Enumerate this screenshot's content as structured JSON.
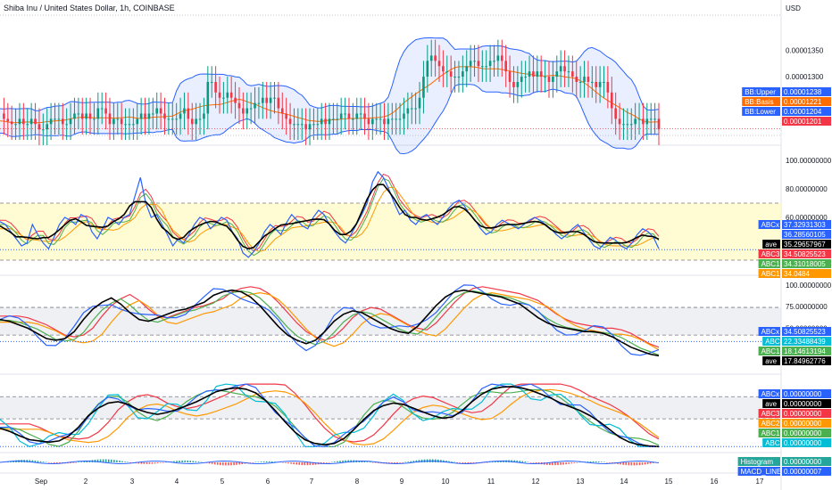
{
  "header": {
    "title": "Shiba Inu / United States Dollar, 1h, COINBASE",
    "currency": "USD"
  },
  "chart_data": {
    "type": "line",
    "x_axis": {
      "ticks": [
        "Sep",
        "2",
        "3",
        "4",
        "5",
        "6",
        "7",
        "8",
        "9",
        "10",
        "11",
        "12",
        "13",
        "14",
        "15",
        "16",
        "17"
      ]
    },
    "panes": [
      {
        "name": "price",
        "ylim": [
          1.175e-05,
          1.415e-05
        ],
        "y_ticks": [
          "0.00001350",
          "0.00001300"
        ],
        "labels": [
          {
            "text": "BB:Upper",
            "value": "0.00001238",
            "color": "#2962ff"
          },
          {
            "text": "BB:Basis",
            "value": "0.00001221",
            "color": "#ff6d00"
          },
          {
            "text": "BB:Lower",
            "value": "0.00001204",
            "color": "#2962ff"
          },
          {
            "text": "",
            "value": "0.00001201",
            "color": "#f23645"
          }
        ],
        "close_trace": [
          1.23e-05,
          1.22e-05,
          1.215e-05,
          1.21e-05,
          1.21e-05,
          1.22e-05,
          1.21e-05,
          1.21e-05,
          1.22e-05,
          1.21e-05,
          1.2e-05,
          1.2e-05,
          1.21e-05,
          1.22e-05,
          1.22e-05,
          1.22e-05,
          1.21e-05,
          1.21e-05,
          1.22e-05,
          1.23e-05,
          1.23e-05,
          1.22e-05,
          1.23e-05,
          1.22e-05,
          1.22e-05,
          1.24e-05,
          1.24e-05,
          1.23e-05,
          1.21e-05,
          1.22e-05,
          1.22e-05,
          1.21e-05,
          1.21e-05,
          1.21e-05,
          1.21e-05,
          1.22e-05,
          1.23e-05,
          1.22e-05,
          1.23e-05,
          1.23e-05,
          1.24e-05,
          1.23e-05,
          1.22e-05,
          1.22e-05,
          1.22e-05,
          1.22e-05,
          1.23e-05,
          1.24e-05,
          1.22e-05,
          1.21e-05,
          1.22e-05,
          1.22e-05,
          1.23e-05,
          1.29e-05,
          1.29e-05,
          1.27e-05,
          1.26e-05,
          1.26e-05,
          1.27e-05,
          1.26e-05,
          1.25e-05,
          1.24e-05,
          1.23e-05,
          1.24e-05,
          1.24e-05,
          1.25e-05,
          1.25e-05,
          1.26e-05,
          1.25e-05,
          1.26e-05,
          1.26e-05,
          1.24e-05,
          1.23e-05,
          1.22e-05,
          1.21e-05,
          1.21e-05,
          1.21e-05,
          1.21e-05,
          1.2e-05,
          1.21e-05,
          1.21e-05,
          1.21e-05,
          1.22e-05,
          1.21e-05,
          1.22e-05,
          1.22e-05,
          1.22e-05,
          1.23e-05,
          1.23e-05,
          1.22e-05,
          1.22e-05,
          1.23e-05,
          1.23e-05,
          1.22e-05,
          1.21e-05,
          1.22e-05,
          1.22e-05,
          1.22e-05,
          1.21e-05,
          1.22e-05,
          1.22e-05,
          1.22e-05,
          1.22e-05,
          1.23e-05,
          1.24e-05,
          1.24e-05,
          1.24e-05,
          1.26e-05,
          1.3e-05,
          1.33e-05,
          1.34e-05,
          1.33e-05,
          1.32e-05,
          1.31e-05,
          1.31e-05,
          1.3e-05,
          1.3e-05,
          1.3e-05,
          1.31e-05,
          1.32e-05,
          1.33e-05,
          1.33e-05,
          1.32e-05,
          1.32e-05,
          1.32e-05,
          1.33e-05,
          1.33e-05,
          1.34e-05,
          1.33e-05,
          1.31e-05,
          1.29e-05,
          1.28e-05,
          1.29e-05,
          1.3e-05,
          1.3e-05,
          1.31e-05,
          1.3e-05,
          1.31e-05,
          1.3e-05,
          1.3e-05,
          1.29e-05,
          1.3e-05,
          1.31e-05,
          1.32e-05,
          1.31e-05,
          1.31e-05,
          1.3e-05,
          1.29e-05,
          1.29e-05,
          1.3e-05,
          1.29e-05,
          1.29e-05,
          1.28e-05,
          1.29e-05,
          1.29e-05,
          1.27e-05,
          1.24e-05,
          1.22e-05,
          1.21e-05,
          1.21e-05,
          1.21e-05,
          1.21e-05,
          1.22e-05,
          1.22e-05,
          1.21e-05,
          1.22e-05,
          1.22e-05,
          1.22e-05,
          1.2e-05
        ]
      },
      {
        "name": "oscillator-1",
        "ylim": [
          25,
          105
        ],
        "y_ticks": [
          "100.00000000",
          "80.00000000",
          "60.00000000"
        ],
        "band": [
          70,
          30
        ],
        "labels": [
          {
            "text": "ABCx",
            "value": "37.32931303",
            "color": "#2962ff"
          },
          {
            "text": "",
            "value": "36.28560105",
            "color": "#2962ff"
          },
          {
            "text": "ave",
            "value": "35.29657967",
            "color": "#000000"
          },
          {
            "text": "ABC3",
            "value": "34.50825523",
            "color": "#f23645"
          },
          {
            "text": "ABC1",
            "value": "34.31018005",
            "color": "#4caf50"
          },
          {
            "text": "ABC1",
            "value": "34.0484",
            "color": "#ff9800"
          }
        ],
        "blue_trace": [
          57,
          55,
          50,
          45,
          40,
          42,
          55,
          48,
          42,
          38,
          46,
          55,
          60,
          58,
          55,
          62,
          60,
          50,
          45,
          52,
          60,
          58,
          55,
          60,
          62,
          75,
          88,
          70,
          60,
          62,
          55,
          48,
          40,
          45,
          42,
          48,
          55,
          60,
          58,
          52,
          56,
          60,
          58,
          50,
          45,
          35,
          32,
          36,
          42,
          50,
          55,
          52,
          48,
          56,
          62,
          58,
          54,
          52,
          60,
          65,
          62,
          55,
          50,
          45,
          42,
          48,
          55,
          62,
          70,
          85,
          92,
          88,
          80,
          70,
          62,
          65,
          58,
          55,
          60,
          62,
          58,
          55,
          60,
          66,
          70,
          72,
          68,
          62,
          58,
          52,
          48,
          50,
          55,
          58,
          56,
          54,
          52,
          55,
          58,
          60,
          58,
          55,
          52,
          48,
          45,
          48,
          52,
          55,
          50,
          45,
          40,
          38,
          42,
          46,
          44,
          40,
          38,
          42,
          48,
          52,
          50,
          46,
          38
        ]
      },
      {
        "name": "oscillator-2",
        "ylim": [
          5,
          105
        ],
        "y_ticks": [
          "100.00000000",
          "75.00000000",
          "50.00000000"
        ],
        "band": [
          74,
          42
        ],
        "labels": [
          {
            "text": "ABCx",
            "value": "34.50825523",
            "color": "#2962ff"
          },
          {
            "text": "ABC",
            "value": "22.33488439",
            "color": "#00bcd4"
          },
          {
            "text": "ABC1",
            "value": "18.14613194",
            "color": "#4caf50"
          },
          {
            "text": "ave",
            "value": "17.84962776",
            "color": "#000000"
          }
        ],
        "black_trace": [
          60,
          58,
          54,
          50,
          44,
          38,
          36,
          38,
          46,
          60,
          72,
          80,
          85,
          78,
          68,
          60,
          58,
          62,
          66,
          70,
          72,
          76,
          80,
          88,
          92,
          94,
          92,
          86,
          76,
          64,
          52,
          42,
          36,
          32,
          36,
          46,
          58,
          66,
          70,
          68,
          62,
          56,
          50,
          46,
          44,
          52,
          64,
          76,
          86,
          92,
          94,
          92,
          90,
          88,
          86,
          82,
          78,
          70,
          62,
          56,
          52,
          50,
          48,
          46,
          46,
          44,
          40,
          34,
          28,
          24,
          20,
          18
        ]
      },
      {
        "name": "oscillator-3",
        "ylim": [
          0,
          110
        ],
        "band": [
          80,
          45
        ],
        "labels": [
          {
            "text": "ABCx",
            "value": "0.00000000",
            "color": "#2962ff"
          },
          {
            "text": "ave",
            "value": "0.00000000",
            "color": "#000000"
          },
          {
            "text": "ABC3",
            "value": "0.00000000",
            "color": "#f23645"
          },
          {
            "text": "ABC2",
            "value": "0.00000000",
            "color": "#ff9800"
          },
          {
            "text": "ABC1",
            "value": "0.00000000",
            "color": "#4caf50"
          },
          {
            "text": "ABC",
            "value": "0.00000000",
            "color": "#00bcd4"
          }
        ],
        "black_trace": [
          30,
          25,
          18,
          12,
          10,
          8,
          10,
          18,
          32,
          50,
          62,
          70,
          72,
          68,
          60,
          55,
          52,
          55,
          60,
          66,
          72,
          80,
          88,
          92,
          94,
          92,
          86,
          74,
          58,
          40,
          24,
          12,
          6,
          4,
          6,
          14,
          28,
          44,
          58,
          66,
          70,
          68,
          62,
          56,
          50,
          46,
          48,
          58,
          72,
          84,
          92,
          95,
          96,
          94,
          90,
          84,
          78,
          70,
          64,
          58,
          50,
          40,
          28,
          16,
          8,
          4,
          2,
          1
        ]
      },
      {
        "name": "histogram",
        "labels": [
          {
            "text": "Histogram",
            "value": "0.00000000",
            "color": "#26a69a"
          },
          {
            "text": "MACD_LINE",
            "value": "0.00000007",
            "color": "#2962ff"
          }
        ]
      }
    ]
  }
}
